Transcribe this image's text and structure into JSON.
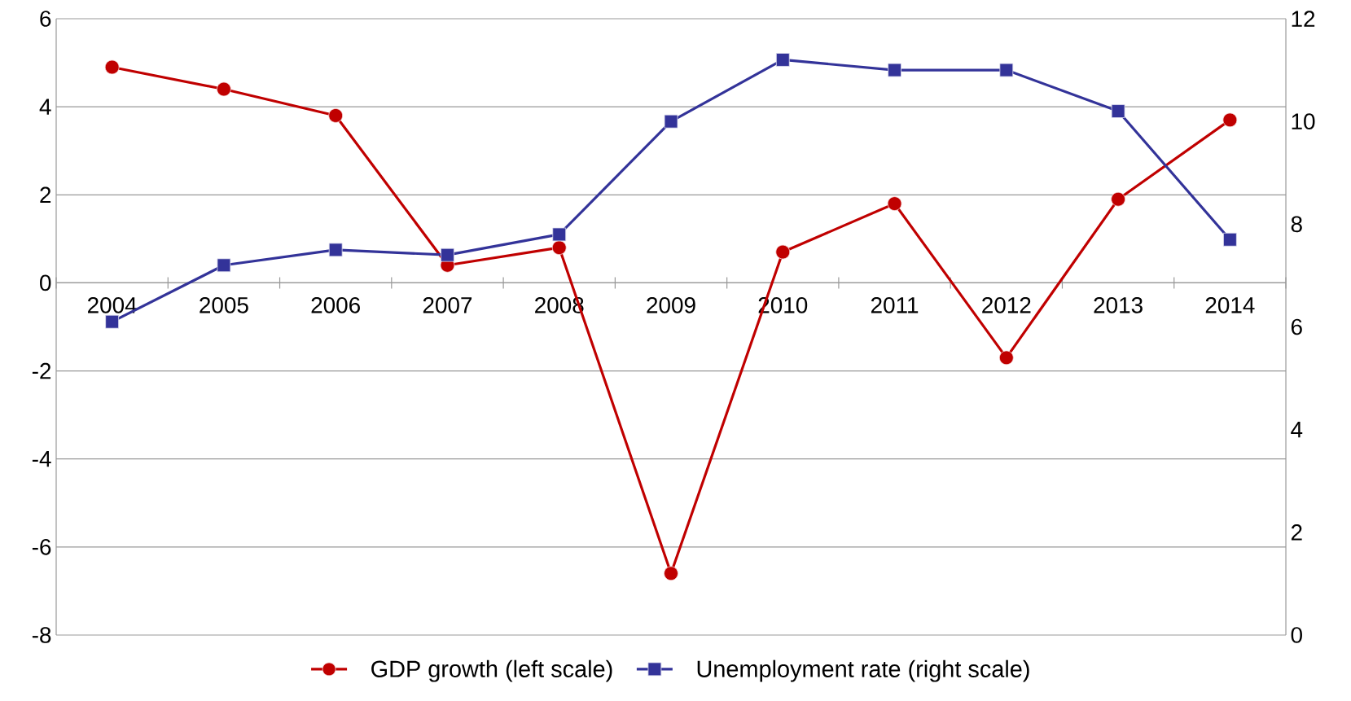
{
  "chart_data": {
    "type": "line",
    "categories": [
      "2004",
      "2005",
      "2006",
      "2007",
      "2008",
      "2009",
      "2010",
      "2011",
      "2012",
      "2013",
      "2014"
    ],
    "series": [
      {
        "name": "GDP growth (left scale)",
        "color": "#c00000",
        "marker": "circle",
        "values": [
          4.9,
          4.4,
          3.8,
          0.4,
          0.8,
          -6.6,
          0.7,
          1.8,
          -1.7,
          1.9,
          3.7
        ]
      },
      {
        "name": "Unemployment rate  (right scale)",
        "color": "#333399",
        "marker": "square",
        "axis": "y2",
        "values": [
          6.1,
          7.2,
          7.5,
          7.4,
          7.8,
          10.0,
          11.2,
          11.0,
          11.0,
          10.2,
          7.7
        ]
      }
    ],
    "ylim": [
      -8,
      6
    ],
    "yticks": [
      -8,
      -6,
      -4,
      -2,
      0,
      2,
      4,
      6
    ],
    "y2lim": [
      0,
      12
    ],
    "y2ticks": [
      0,
      2,
      4,
      6,
      8,
      10,
      12
    ],
    "grid": "y",
    "legend": "bottom"
  }
}
